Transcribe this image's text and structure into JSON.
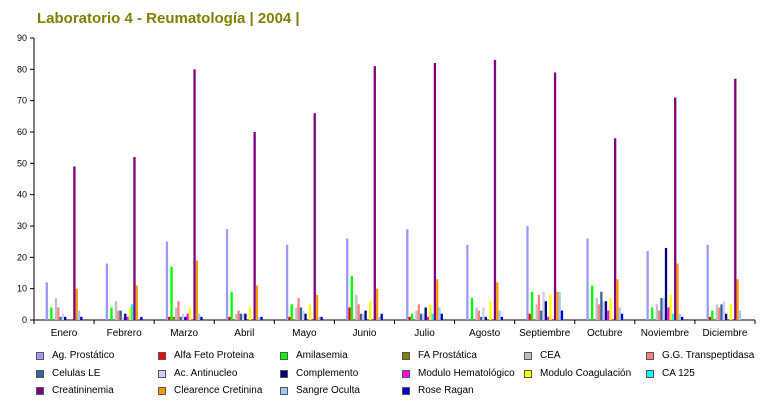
{
  "chart_data": {
    "type": "bar",
    "title": "Laboratorio 4 - Reumatología | 2004 |",
    "xlabel": "",
    "ylabel": "",
    "ylim": [
      0,
      90
    ],
    "yticks": [
      0,
      10,
      20,
      30,
      40,
      50,
      60,
      70,
      80,
      90
    ],
    "grid": false,
    "legend_position": "bottom",
    "categories": [
      "Enero",
      "Febrero",
      "Marzo",
      "Abril",
      "Mayo",
      "Junio",
      "Julio",
      "Agosto",
      "Septiembre",
      "Octubre",
      "Noviembre",
      "Diciembre"
    ],
    "series": [
      {
        "name": "Ag. Prostático",
        "color": "#9999ff",
        "values": [
          12,
          18,
          25,
          29,
          24,
          26,
          29,
          24,
          30,
          26,
          22,
          24
        ]
      },
      {
        "name": "Alfa Feto Proteina",
        "color": "#ff0000",
        "values": [
          0,
          0,
          1,
          1,
          1,
          4,
          1,
          0,
          2,
          0,
          0,
          1
        ]
      },
      {
        "name": "Amilasemia",
        "color": "#00ff00",
        "values": [
          4,
          4,
          17,
          9,
          5,
          14,
          2,
          7,
          9,
          11,
          4,
          3
        ]
      },
      {
        "name": "FA Prostática",
        "color": "#808000",
        "values": [
          0,
          0,
          1,
          0,
          0,
          0,
          0,
          0,
          0,
          0,
          0,
          0
        ]
      },
      {
        "name": "CEA",
        "color": "#c0c0c0",
        "values": [
          7,
          6,
          4,
          2,
          4,
          8,
          3,
          4,
          5,
          7,
          5,
          5
        ]
      },
      {
        "name": "G.G. Transpeptidasa",
        "color": "#ff8080",
        "values": [
          4,
          3,
          6,
          3,
          7,
          5,
          5,
          3,
          8,
          5,
          3,
          4
        ]
      },
      {
        "name": "Celulas LE",
        "color": "#336699",
        "values": [
          1,
          3,
          1,
          2,
          4,
          2,
          2,
          1,
          3,
          9,
          7,
          5
        ]
      },
      {
        "name": "Ac. Antinucleo",
        "color": "#ccccff",
        "values": [
          2,
          1,
          2,
          2,
          3,
          2,
          2,
          4,
          9,
          6,
          7,
          6
        ]
      },
      {
        "name": "Complemento",
        "color": "#000080",
        "values": [
          1,
          2,
          1,
          2,
          2,
          3,
          4,
          1,
          6,
          6,
          23,
          2
        ]
      },
      {
        "name": "Modulo Hematológico",
        "color": "#ff00ff",
        "values": [
          0,
          1,
          2,
          0,
          0,
          0,
          1,
          0,
          1,
          3,
          4,
          0
        ]
      },
      {
        "name": "Modulo Coagulación",
        "color": "#ffff00",
        "values": [
          0,
          4,
          4,
          4,
          5,
          6,
          5,
          6,
          8,
          7,
          8,
          5
        ]
      },
      {
        "name": "CA 125",
        "color": "#00ffff",
        "values": [
          0,
          5,
          0,
          0,
          0,
          0,
          2,
          0,
          0,
          0,
          2,
          0
        ]
      },
      {
        "name": "Creatininemia",
        "color": "#800080",
        "values": [
          49,
          52,
          80,
          60,
          66,
          81,
          82,
          83,
          79,
          58,
          71,
          77
        ]
      },
      {
        "name": "Clearence Cretinina",
        "color": "#ff9900",
        "values": [
          10,
          11,
          19,
          11,
          8,
          10,
          13,
          12,
          9,
          13,
          18,
          13
        ]
      },
      {
        "name": "Sangre Oculta",
        "color": "#99ccff",
        "values": [
          3,
          0,
          2,
          1,
          1,
          1,
          4,
          3,
          9,
          4,
          2,
          3
        ]
      },
      {
        "name": "Rose Ragan",
        "color": "#0000cc",
        "values": [
          1,
          1,
          1,
          1,
          1,
          2,
          2,
          1,
          3,
          2,
          1,
          0
        ]
      }
    ]
  }
}
